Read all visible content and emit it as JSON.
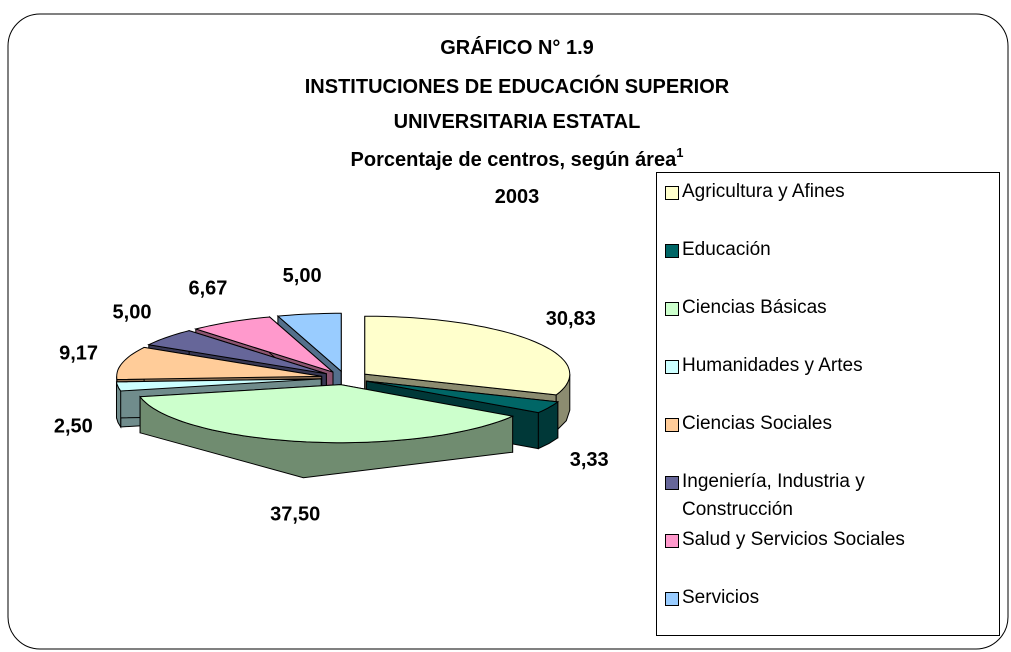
{
  "chart_data": {
    "type": "pie",
    "title": [
      "GRÁFICO N° 1.9",
      "INSTITUCIONES DE EDUCACIÓN SUPERIOR",
      "UNIVERSITARIA ESTATAL"
    ],
    "subtitle": "Porcentaje de centros, según área",
    "subtitle_note": "1",
    "year": "2003",
    "categories": [
      "Agricultura y Afines",
      "Educación",
      "Ciencias Básicas",
      "Humanidades y Artes",
      "Ciencias Sociales",
      "Ingeniería, Industria y Construcción",
      "Salud y Servicios Sociales",
      "Servicios"
    ],
    "values": [
      30.83,
      3.33,
      37.5,
      2.5,
      9.17,
      5,
      6.67,
      5
    ],
    "value_labels": [
      "30,83",
      "3,33",
      "37,50",
      "2,50",
      "9,17",
      "5,00",
      "6,67",
      "5,00"
    ],
    "colors": [
      "#ffffcc",
      "#006666",
      "#ccffcc",
      "#ccffff",
      "#ffcc99",
      "#666699",
      "#ff99cc",
      "#99ccff"
    ],
    "legend": "right"
  }
}
